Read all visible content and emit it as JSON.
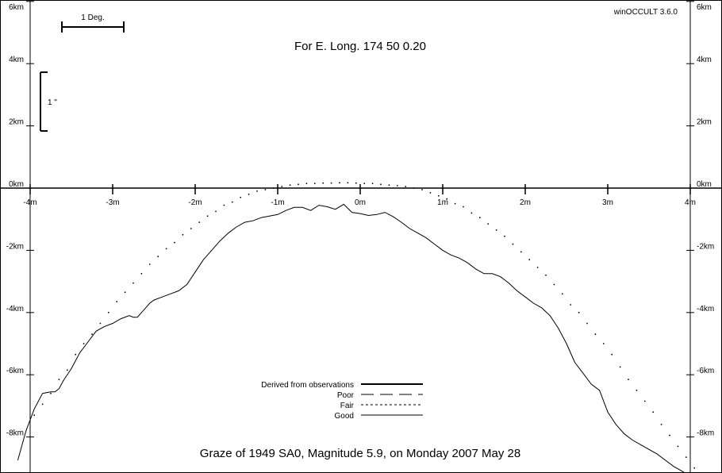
{
  "software": "winOCCULT 3.6.0",
  "subtitle": "For E. Long.  174 50  0.20",
  "title": "Graze of     1949  SA0,  Magnitude   5.9,  on Monday  2007  May  28",
  "scale_bars": {
    "degree_label": "1 Deg.",
    "arcsec_label": "1 \""
  },
  "legend": [
    {
      "label": "Derived from observations",
      "style": "thick"
    },
    {
      "label": "Poor",
      "style": "long-dash"
    },
    {
      "label": "Fair",
      "style": "short-dash"
    },
    {
      "label": "Good",
      "style": "thin"
    }
  ],
  "colors": {
    "background": "#ffffff",
    "ink": "#000000"
  },
  "chart_data": {
    "type": "line",
    "title": "Graze of     1949  SA0,  Magnitude   5.9,  on Monday  2007  May  28",
    "subtitle": "For E. Long.  174 50  0.20",
    "xlabel": "",
    "ylabel": "",
    "x_ticks": [
      -4,
      -3,
      -2,
      -1,
      0,
      1,
      2,
      3,
      4
    ],
    "x_tick_labels": [
      "-4m",
      "-3m",
      "-2m",
      "-1m",
      "0m",
      "1m",
      "2m",
      "3m",
      "4m"
    ],
    "y_ticks": [
      6,
      4,
      2,
      0,
      -2,
      -4,
      -6,
      -8
    ],
    "y_tick_labels": [
      "6km",
      "4km",
      "2km",
      "0km",
      "-2km",
      "-4km",
      "-6km",
      "-8km"
    ],
    "xlim": [
      -4.38,
      4.38
    ],
    "ylim": [
      -9.0,
      6.2
    ],
    "grid": false,
    "legend_position": "bottom-center",
    "series": [
      {
        "name": "Good",
        "style": "solid",
        "x": [
          -4.15,
          -4.05,
          -3.95,
          -3.85,
          -3.75,
          -3.7,
          -3.65,
          -3.6,
          -3.5,
          -3.4,
          -3.3,
          -3.2,
          -3.1,
          -3.0,
          -2.9,
          -2.8,
          -2.75,
          -2.7,
          -2.65,
          -2.6,
          -2.55,
          -2.5,
          -2.4,
          -2.3,
          -2.2,
          -2.1,
          -2.0,
          -1.9,
          -1.8,
          -1.7,
          -1.6,
          -1.5,
          -1.4,
          -1.3,
          -1.2,
          -1.1,
          -1.0,
          -0.9,
          -0.8,
          -0.7,
          -0.6,
          -0.5,
          -0.4,
          -0.3,
          -0.2,
          -0.15,
          -0.1,
          0.0,
          0.1,
          0.2,
          0.3,
          0.4,
          0.5,
          0.6,
          0.7,
          0.8,
          0.9,
          1.0,
          1.1,
          1.2,
          1.3,
          1.4,
          1.5,
          1.6,
          1.7,
          1.8,
          1.9,
          2.0,
          2.1,
          2.2,
          2.3,
          2.4,
          2.5,
          2.6,
          2.7,
          2.8,
          2.9,
          3.0,
          3.1,
          3.2,
          3.3,
          3.4,
          3.5,
          3.6,
          3.7,
          3.8,
          3.9,
          4.0,
          4.1,
          4.2,
          4.3,
          4.38
        ],
        "y": [
          -8.75,
          -7.8,
          -7.1,
          -6.6,
          -6.55,
          -6.55,
          -6.45,
          -6.2,
          -5.8,
          -5.3,
          -4.95,
          -4.6,
          -4.45,
          -4.35,
          -4.2,
          -4.1,
          -4.15,
          -4.15,
          -4.0,
          -3.85,
          -3.7,
          -3.6,
          -3.5,
          -3.4,
          -3.3,
          -3.1,
          -2.7,
          -2.3,
          -2.0,
          -1.7,
          -1.45,
          -1.25,
          -1.1,
          -1.05,
          -0.95,
          -0.9,
          -0.85,
          -0.72,
          -0.62,
          -0.62,
          -0.72,
          -0.55,
          -0.6,
          -0.68,
          -0.52,
          -0.65,
          -0.78,
          -0.82,
          -0.88,
          -0.85,
          -0.78,
          -0.92,
          -1.1,
          -1.3,
          -1.45,
          -1.6,
          -1.8,
          -2.0,
          -2.15,
          -2.25,
          -2.4,
          -2.6,
          -2.75,
          -2.75,
          -2.85,
          -3.05,
          -3.3,
          -3.5,
          -3.7,
          -3.85,
          -4.1,
          -4.5,
          -5.0,
          -5.6,
          -5.95,
          -6.3,
          -6.5,
          -7.2,
          -7.6,
          -7.9,
          -8.1,
          -8.25,
          -8.4,
          -8.55,
          -8.75,
          -8.95,
          -9.1,
          -9.25,
          -9.4,
          -9.5,
          -9.6,
          -9.7
        ]
      },
      {
        "name": "Fair",
        "style": "dotted",
        "x": [
          -3.95,
          -3.85,
          -3.75,
          -3.65,
          -3.55,
          -3.45,
          -3.35,
          -3.25,
          -3.15,
          -3.05,
          -2.95,
          -2.85,
          -2.75,
          -2.65,
          -2.55,
          -2.45,
          -2.35,
          -2.25,
          -2.15,
          -2.05,
          -1.95,
          -1.85,
          -1.75,
          -1.65,
          -1.55,
          -1.45,
          -1.35,
          -1.25,
          -1.15,
          -1.05,
          -0.95,
          -0.85,
          -0.75,
          -0.65,
          -0.55,
          -0.45,
          -0.35,
          -0.25,
          -0.15,
          -0.05,
          0.05,
          0.15,
          0.25,
          0.35,
          0.45,
          0.55,
          0.65,
          0.75,
          0.85,
          0.95,
          1.05,
          1.15,
          1.25,
          1.35,
          1.45,
          1.55,
          1.65,
          1.75,
          1.85,
          1.95,
          2.05,
          2.15,
          2.25,
          2.35,
          2.45,
          2.55,
          2.65,
          2.75,
          2.85,
          2.95,
          3.05,
          3.15,
          3.25,
          3.35,
          3.45,
          3.55,
          3.65,
          3.75,
          3.85,
          3.95,
          4.05,
          4.15
        ],
        "y": [
          -7.3,
          -6.95,
          -6.6,
          -6.15,
          -5.85,
          -5.35,
          -5.0,
          -4.7,
          -4.35,
          -4.0,
          -3.65,
          -3.35,
          -3.05,
          -2.75,
          -2.45,
          -2.2,
          -1.95,
          -1.75,
          -1.5,
          -1.3,
          -1.1,
          -0.9,
          -0.75,
          -0.55,
          -0.45,
          -0.3,
          -0.2,
          -0.1,
          -0.05,
          0.0,
          0.05,
          0.1,
          0.12,
          0.15,
          0.15,
          0.16,
          0.16,
          0.17,
          0.17,
          0.16,
          0.15,
          0.15,
          0.12,
          0.1,
          0.08,
          0.05,
          0.0,
          -0.05,
          -0.15,
          -0.25,
          -0.35,
          -0.5,
          -0.6,
          -0.8,
          -0.95,
          -1.15,
          -1.35,
          -1.55,
          -1.8,
          -2.05,
          -2.3,
          -2.55,
          -2.8,
          -3.1,
          -3.4,
          -3.75,
          -4.0,
          -4.35,
          -4.7,
          -5.0,
          -5.35,
          -5.75,
          -6.15,
          -6.5,
          -6.85,
          -7.2,
          -7.6,
          -7.95,
          -8.3,
          -8.65,
          -9.0,
          -9.3
        ]
      }
    ]
  }
}
